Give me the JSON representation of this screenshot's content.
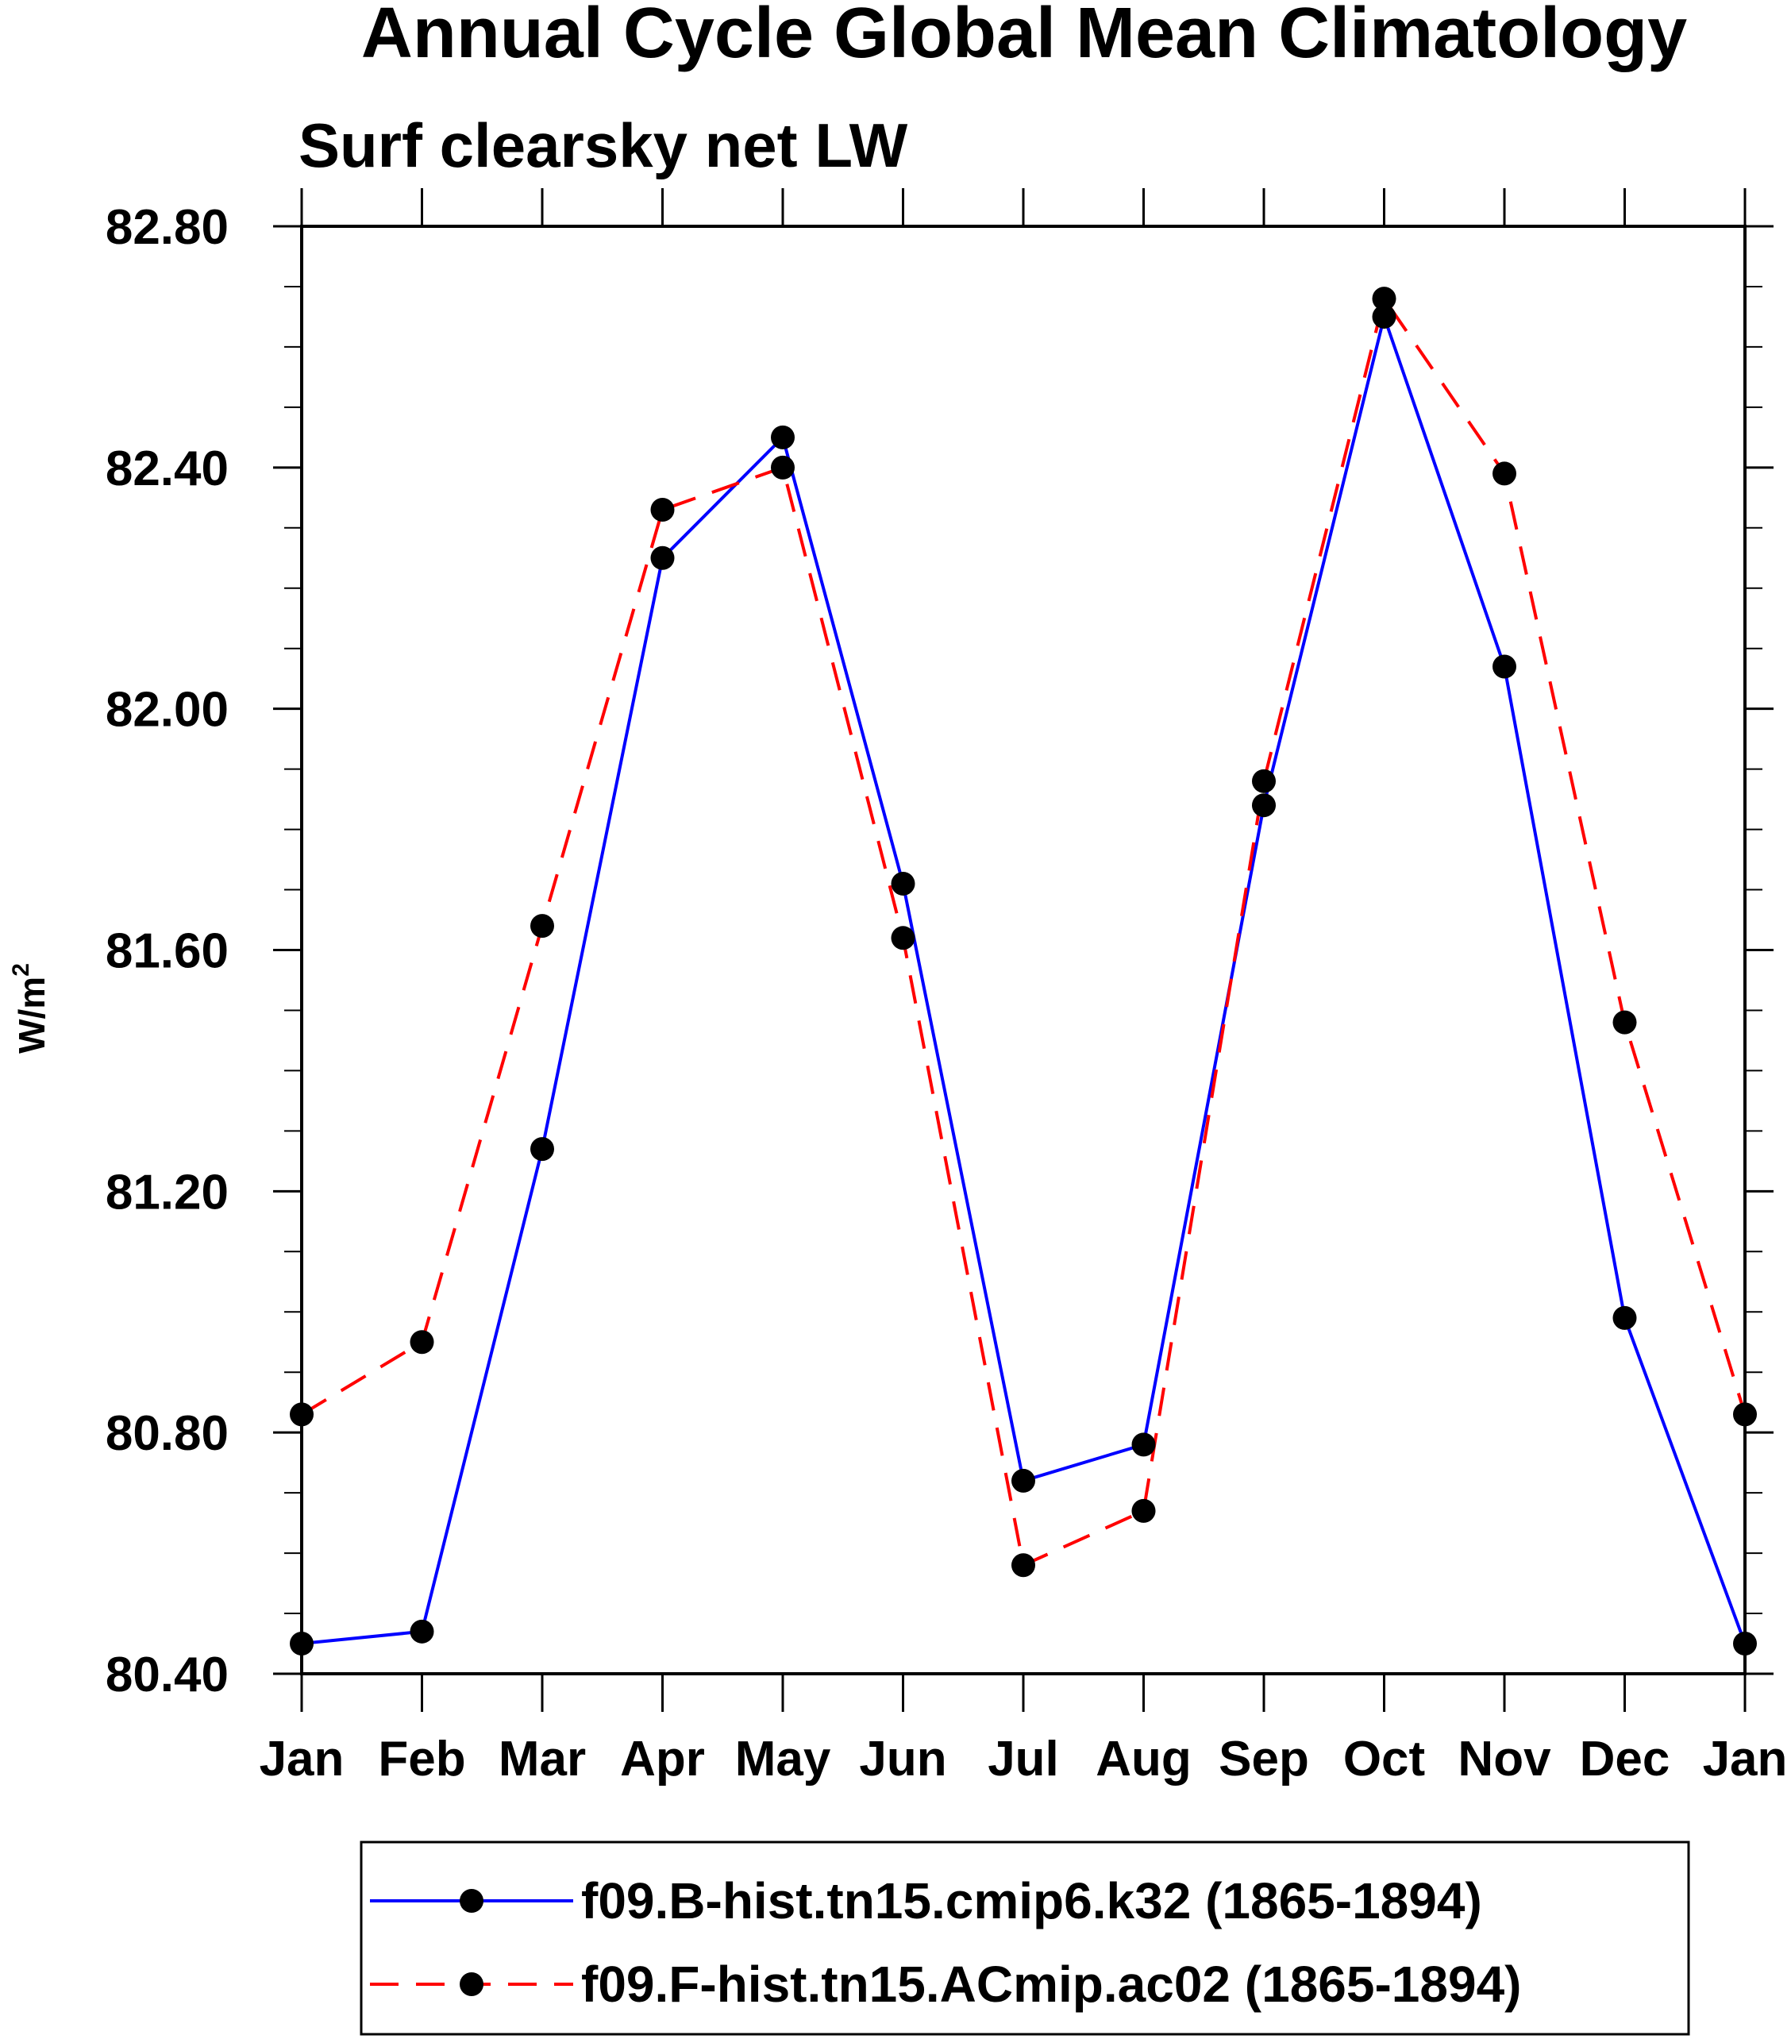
{
  "chart_data": {
    "type": "line",
    "title": "Annual Cycle Global Mean Climatology",
    "subtitle": "Surf clearsky net LW",
    "ylabel": "W/m",
    "ylabel_superscript": "2",
    "xlabel": "",
    "categories": [
      "Jan",
      "Feb",
      "Mar",
      "Apr",
      "May",
      "Jun",
      "Jul",
      "Aug",
      "Sep",
      "Oct",
      "Nov",
      "Dec",
      "Jan"
    ],
    "ylim": [
      80.4,
      82.8
    ],
    "yticks": [
      80.4,
      80.8,
      81.2,
      81.6,
      82.0,
      82.4,
      82.8
    ],
    "ytick_labels": [
      "80.40",
      "80.80",
      "81.20",
      "81.60",
      "82.00",
      "82.40",
      "82.80"
    ],
    "y_minor_step": 0.1,
    "grid": false,
    "legend_position": "bottom",
    "series": [
      {
        "name": "f09.B-hist.tn15.cmip6.k32 (1865-1894)",
        "color": "#0000ff",
        "dash": "solid",
        "marker": "circle",
        "values": [
          80.45,
          80.47,
          81.27,
          82.25,
          82.45,
          81.71,
          80.72,
          80.78,
          81.84,
          82.65,
          82.07,
          80.99,
          80.45
        ]
      },
      {
        "name": "f09.F-hist.tn15.ACmip.ac02 (1865-1894)",
        "color": "#ff0000",
        "dash": "dashed",
        "marker": "circle",
        "values": [
          80.83,
          80.95,
          81.64,
          82.33,
          82.4,
          81.62,
          80.58,
          80.67,
          81.88,
          82.68,
          82.39,
          81.48,
          80.83
        ]
      }
    ]
  }
}
